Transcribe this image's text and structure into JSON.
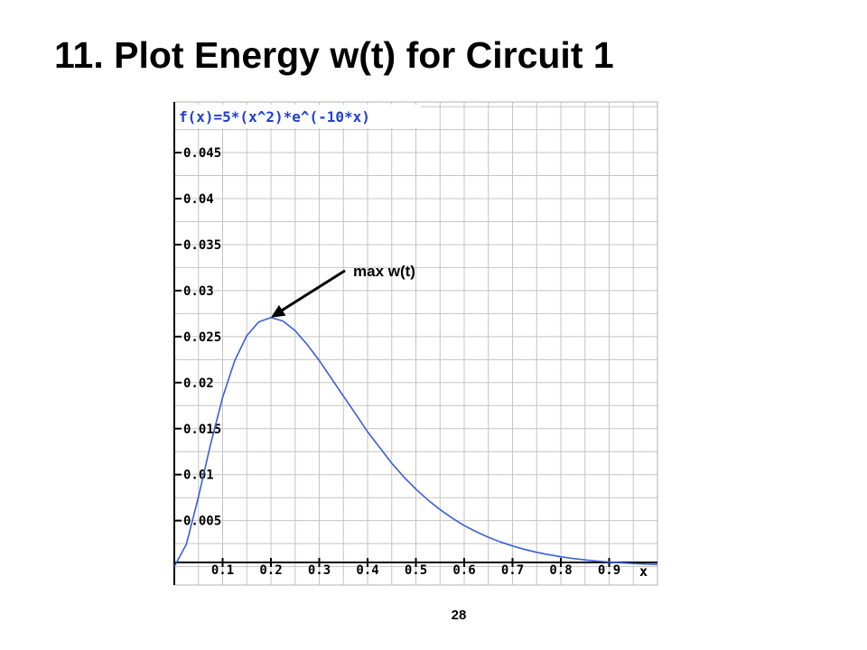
{
  "slide": {
    "title": "11. Plot Energy w(t) for Circuit 1",
    "page_number": "28"
  },
  "chart_data": {
    "type": "line",
    "function_label": "f(x)=5*(x^2)*e^(-10*x)",
    "xlabel": "x",
    "ylabel": "",
    "xlim": [
      0,
      1.0
    ],
    "ylim": [
      -0.002,
      0.0505
    ],
    "grid": true,
    "x_ticks": [
      0.1,
      0.2,
      0.3,
      0.4,
      0.5,
      0.6,
      0.7,
      0.8,
      0.9
    ],
    "x_tick_labels": [
      "0.1",
      "0.2",
      "0.3",
      "0.4",
      "0.5",
      "0.6",
      "0.7",
      "0.8",
      "0.9"
    ],
    "y_ticks": [
      0.005,
      0.01,
      0.015,
      0.02,
      0.025,
      0.03,
      0.035,
      0.04,
      0.045
    ],
    "y_tick_labels": [
      "0.005",
      "0.01",
      "0.015",
      "0.02",
      "0.025",
      "0.03",
      "0.035",
      "0.04",
      "0.045"
    ],
    "series": [
      {
        "color": "#3a5fd6",
        "x": [
          0,
          0.025,
          0.05,
          0.075,
          0.1,
          0.125,
          0.15,
          0.175,
          0.2,
          0.225,
          0.25,
          0.275,
          0.3,
          0.325,
          0.35,
          0.375,
          0.4,
          0.425,
          0.45,
          0.475,
          0.5,
          0.525,
          0.55,
          0.575,
          0.6,
          0.625,
          0.65,
          0.675,
          0.7,
          0.725,
          0.75,
          0.775,
          0.8,
          0.825,
          0.85,
          0.875,
          0.9,
          0.925,
          0.95,
          0.975,
          1.0
        ],
        "y": [
          0,
          0.00243,
          0.00758,
          0.01329,
          0.01839,
          0.02238,
          0.0251,
          0.02661,
          0.02707,
          0.02669,
          0.02565,
          0.02414,
          0.0224,
          0.02047,
          0.01853,
          0.01661,
          0.01465,
          0.01295,
          0.01124,
          0.00975,
          0.00842,
          0.00724,
          0.0062,
          0.00528,
          0.00446,
          0.00379,
          0.00319,
          0.00268,
          0.00224,
          0.00187,
          0.00155,
          0.00129,
          0.00107,
          0.00088,
          0.00073,
          0.0006,
          0.0005,
          0.00041,
          0.00034,
          0.00027,
          0.00023
        ]
      }
    ],
    "annotation": {
      "text": "max w(t)",
      "target": {
        "x": 0.2,
        "y": 0.02707
      }
    },
    "colors": {
      "curve": "#3a5fd6",
      "function_label": "#1f3fd0",
      "grid": "#c4c4c4",
      "axis": "#000000"
    }
  }
}
